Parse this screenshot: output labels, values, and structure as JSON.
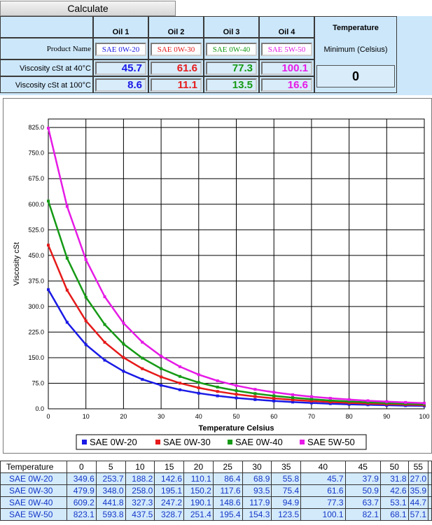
{
  "toolbar": {
    "calculate_label": "Calculate"
  },
  "inputs": {
    "oil_headers": [
      "Oil 1",
      "Oil 2",
      "Oil 3",
      "Oil 4"
    ],
    "product_label": "Product Name",
    "v40_label": "Viscosity cSt at 40°C",
    "v100_label": "Viscosity cSt at 100°C",
    "products": [
      "SAE 0W-20",
      "SAE 0W-30",
      "SAE 0W-40",
      "SAE 5W-50"
    ],
    "v40": [
      "45.7",
      "61.6",
      "77.3",
      "100.1"
    ],
    "v100": [
      "8.6",
      "11.1",
      "13.5",
      "16.6"
    ],
    "colors": [
      "#1a1ae6",
      "#e61a1a",
      "#159a15",
      "#e61ae6"
    ],
    "temp_header": "Temperature",
    "temp_sub": "Minimum (Celsius)",
    "temp_value": "0"
  },
  "chart_data": {
    "type": "line",
    "xlabel": "Temperature Celsius",
    "ylabel": "Viscosity cSt",
    "xlim": [
      0,
      100
    ],
    "ylim": [
      0,
      850
    ],
    "x_ticks": [
      0,
      10,
      20,
      30,
      40,
      50,
      60,
      70,
      80,
      90,
      100
    ],
    "y_ticks": [
      0.0,
      75.0,
      150.0,
      225.0,
      300.0,
      375.0,
      450.0,
      525.0,
      600.0,
      675.0,
      750.0,
      825.0
    ],
    "y_tick_labels": [
      "0.0",
      "75.0",
      "150.0",
      "225.0",
      "300.0",
      "375.0",
      "450.0",
      "525.0",
      "600.0",
      "675.0",
      "750.0",
      "825.0"
    ],
    "x_tick_labels": [
      "0",
      "10",
      "20",
      "30",
      "40",
      "50",
      "60",
      "70",
      "80",
      "90",
      "100"
    ],
    "grid": true,
    "legend_position": "bottom",
    "x": [
      0,
      5,
      10,
      15,
      20,
      25,
      30,
      35,
      40,
      45,
      50,
      55,
      60,
      65,
      70,
      75,
      80,
      85,
      90,
      95,
      100
    ],
    "series": [
      {
        "name": "SAE 0W-20",
        "color": "#1a1ae6",
        "values": [
          349.6,
          253.7,
          188.2,
          142.6,
          110.1,
          86.4,
          68.9,
          55.8,
          45.7,
          37.9,
          31.8,
          27.0,
          23.0,
          19.8,
          17.2,
          15.0,
          13.2,
          11.7,
          10.4,
          9.3,
          8.6
        ]
      },
      {
        "name": "SAE 0W-30",
        "color": "#e61a1a",
        "values": [
          479.9,
          348.0,
          258.0,
          195.1,
          150.2,
          117.6,
          93.5,
          75.4,
          61.6,
          50.9,
          42.6,
          35.9,
          30.6,
          26.3,
          22.8,
          19.9,
          17.5,
          15.4,
          13.7,
          12.3,
          11.1
        ]
      },
      {
        "name": "SAE 0W-40",
        "color": "#159a15",
        "values": [
          609.2,
          441.8,
          327.3,
          247.2,
          190.1,
          148.6,
          117.9,
          94.9,
          77.3,
          63.7,
          53.1,
          44.7,
          38.0,
          32.6,
          28.2,
          24.5,
          21.5,
          19.0,
          16.8,
          15.0,
          13.5
        ]
      },
      {
        "name": "SAE 5W-50",
        "color": "#e61ae6",
        "values": [
          823.1,
          593.8,
          437.5,
          328.7,
          251.4,
          195.4,
          154.3,
          123.5,
          100.1,
          82.1,
          68.1,
          57.1,
          48.4,
          41.3,
          35.6,
          30.9,
          27.0,
          23.7,
          21.0,
          18.7,
          16.6
        ]
      }
    ]
  },
  "table": {
    "header_label": "Temperature",
    "temps": [
      "0",
      "5",
      "10",
      "15",
      "20",
      "25",
      "30",
      "35",
      "40",
      "45",
      "50",
      "55"
    ],
    "rows": [
      {
        "name": "SAE 0W-20",
        "values": [
          "349.6",
          "253.7",
          "188.2",
          "142.6",
          "110.1",
          "86.4",
          "68.9",
          "55.8",
          "45.7",
          "37.9",
          "31.8",
          "27.0"
        ]
      },
      {
        "name": "SAE 0W-30",
        "values": [
          "479.9",
          "348.0",
          "258.0",
          "195.1",
          "150.2",
          "117.6",
          "93.5",
          "75.4",
          "61.6",
          "50.9",
          "42.6",
          "35.9"
        ]
      },
      {
        "name": "SAE 0W-40",
        "values": [
          "609.2",
          "441.8",
          "327.3",
          "247.2",
          "190.1",
          "148.6",
          "117.9",
          "94.9",
          "77.3",
          "63.7",
          "53.1",
          "44.7"
        ]
      },
      {
        "name": "SAE 5W-50",
        "values": [
          "823.1",
          "593.8",
          "437.5",
          "328.7",
          "251.4",
          "195.4",
          "154.3",
          "123.5",
          "100.1",
          "82.1",
          "68.1",
          "57.1"
        ]
      }
    ]
  }
}
